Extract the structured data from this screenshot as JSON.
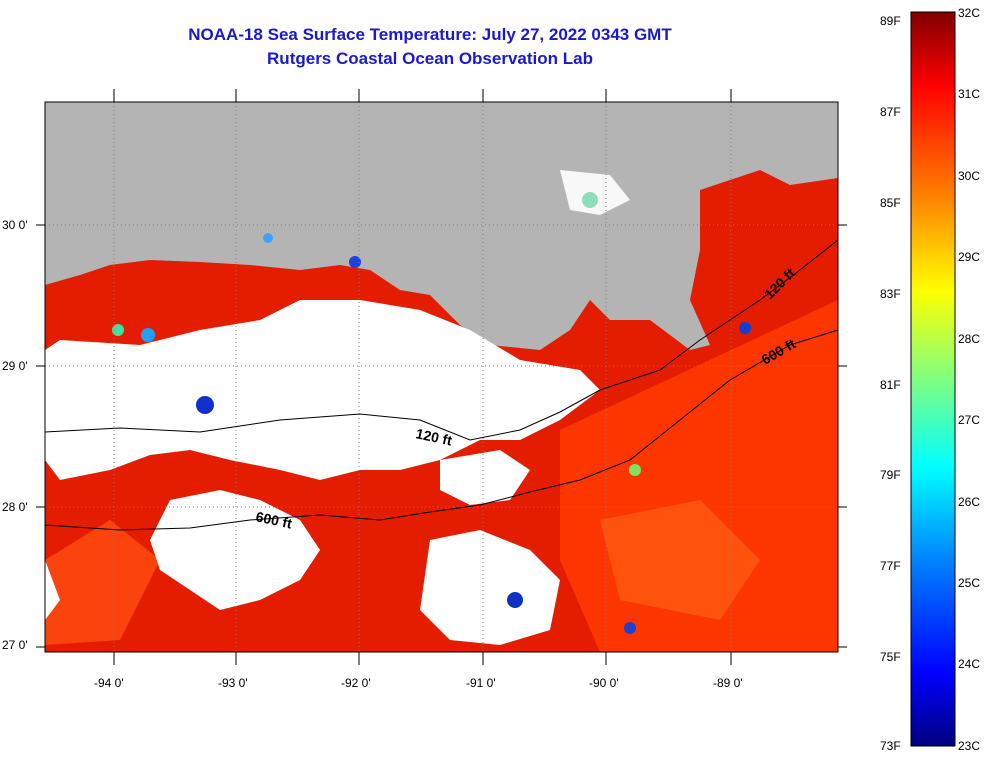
{
  "title": {
    "line1": "NOAA-18 Sea Surface Temperature:  July 27, 2022 0343 GMT",
    "line2": "Rutgers Coastal Ocean Observation Lab"
  },
  "axes": {
    "lon_labels": [
      "-94 0'",
      "-93 0'",
      "-92 0'",
      "-91 0'",
      "-90 0'",
      "-89 0'"
    ],
    "lat_labels": [
      "30 0'",
      "29 0'",
      "28 0'",
      "27 0'"
    ]
  },
  "contours": {
    "label_120_west": "120 ft",
    "label_600_west": "600 ft",
    "label_120_east": "120 ft",
    "label_600_east": "600 ft"
  },
  "colorbar": {
    "f_labels": [
      "89F",
      "87F",
      "85F",
      "83F",
      "81F",
      "79F",
      "77F",
      "75F",
      "73F"
    ],
    "c_labels": [
      "32C",
      "31C",
      "30C",
      "29C",
      "28C",
      "27C",
      "26C",
      "25C",
      "24C",
      "23C"
    ],
    "colors": [
      "#000080",
      "#0000ff",
      "#0080ff",
      "#00ffff",
      "#80ff80",
      "#ffff00",
      "#ff8000",
      "#ff0000",
      "#800000"
    ]
  },
  "colors": {
    "land": "#b4b4b4",
    "warm_water": "#e61e00",
    "hot_water": "#ff3c00",
    "cloud": "#ffffff"
  }
}
